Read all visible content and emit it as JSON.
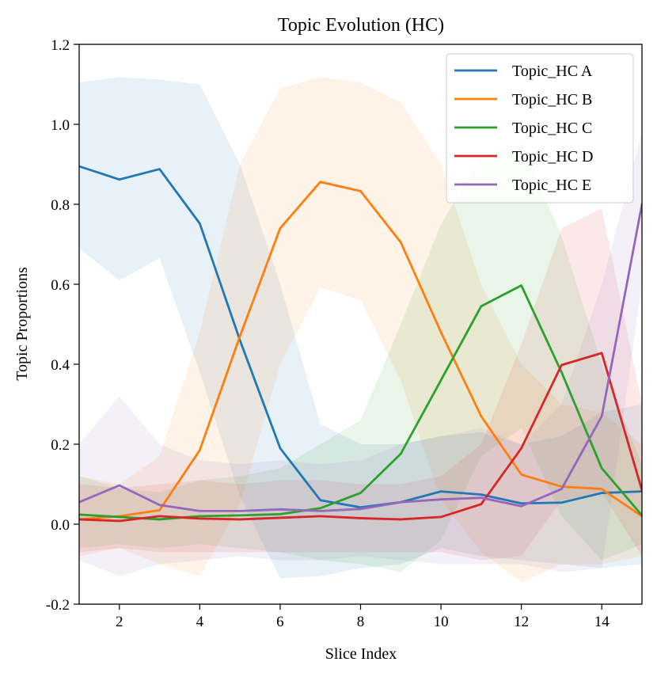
{
  "chart_data": {
    "type": "line",
    "title": "Topic Evolution (HC)",
    "xlabel": "Slice Index",
    "ylabel": "Topic Proportions",
    "xlim": [
      1,
      15
    ],
    "ylim": [
      -0.2,
      1.2
    ],
    "xticks": [
      2,
      4,
      6,
      8,
      10,
      12,
      14
    ],
    "xtick_labels": [
      "2",
      "4",
      "6",
      "8",
      "10",
      "12",
      "14"
    ],
    "yticks": [
      -0.2,
      0.0,
      0.2,
      0.4,
      0.6,
      0.8,
      1.0,
      1.2
    ],
    "ytick_labels": [
      "-0.2",
      "0.0",
      "0.2",
      "0.4",
      "0.6",
      "0.8",
      "1.0",
      "1.2"
    ],
    "grid": false,
    "legend_position": "top-right",
    "x": [
      1,
      2,
      3,
      4,
      5,
      6,
      7,
      8,
      9,
      10,
      11,
      12,
      13,
      14,
      15
    ],
    "series": [
      {
        "name": "Topic_HC A",
        "color": "#1f77b4",
        "values": [
          0.895,
          0.862,
          0.888,
          0.752,
          0.46,
          0.19,
          0.06,
          0.042,
          0.055,
          0.082,
          0.074,
          0.052,
          0.054,
          0.078,
          0.082
        ],
        "upper": [
          1.105,
          1.118,
          1.112,
          1.1,
          0.9,
          0.6,
          0.25,
          0.2,
          0.2,
          0.22,
          0.23,
          0.2,
          0.22,
          0.28,
          0.3
        ],
        "lower": [
          0.69,
          0.61,
          0.665,
          0.38,
          0.07,
          -0.135,
          -0.13,
          -0.11,
          -0.1,
          -0.06,
          -0.08,
          -0.09,
          -0.1,
          -0.11,
          -0.1
        ]
      },
      {
        "name": "Topic_HC B",
        "color": "#ff7f0e",
        "values": [
          0.012,
          0.02,
          0.035,
          0.185,
          0.47,
          0.74,
          0.856,
          0.833,
          0.705,
          0.48,
          0.27,
          0.124,
          0.094,
          0.088,
          0.02
        ],
        "upper": [
          0.12,
          0.1,
          0.17,
          0.48,
          0.9,
          1.09,
          1.118,
          1.105,
          1.055,
          0.9,
          0.6,
          0.4,
          0.3,
          0.28,
          0.2
        ],
        "lower": [
          -0.08,
          -0.06,
          -0.1,
          -0.13,
          0.05,
          0.4,
          0.592,
          0.56,
          0.36,
          0.06,
          -0.07,
          -0.145,
          -0.1,
          -0.1,
          -0.08
        ]
      },
      {
        "name": "Topic_HC C",
        "color": "#2ca02c",
        "values": [
          0.024,
          0.018,
          0.012,
          0.02,
          0.022,
          0.025,
          0.04,
          0.078,
          0.176,
          0.36,
          0.545,
          0.597,
          0.38,
          0.14,
          0.022
        ],
        "upper": [
          0.12,
          0.09,
          0.08,
          0.11,
          0.12,
          0.14,
          0.2,
          0.26,
          0.5,
          0.75,
          0.92,
          0.95,
          0.72,
          0.4,
          0.15
        ],
        "lower": [
          -0.06,
          -0.05,
          -0.06,
          -0.05,
          -0.06,
          -0.07,
          -0.09,
          -0.1,
          -0.12,
          -0.04,
          0.17,
          0.24,
          0.02,
          -0.09,
          -0.05
        ]
      },
      {
        "name": "Topic_HC D",
        "color": "#d62728",
        "values": [
          0.012,
          0.008,
          0.02,
          0.014,
          0.012,
          0.016,
          0.02,
          0.015,
          0.012,
          0.018,
          0.05,
          0.19,
          0.398,
          0.428,
          0.085
        ],
        "upper": [
          0.1,
          0.09,
          0.1,
          0.11,
          0.1,
          0.11,
          0.11,
          0.1,
          0.1,
          0.12,
          0.2,
          0.45,
          0.74,
          0.79,
          0.3
        ],
        "lower": [
          -0.07,
          -0.06,
          -0.07,
          -0.07,
          -0.07,
          -0.07,
          -0.07,
          -0.07,
          -0.07,
          -0.07,
          -0.09,
          -0.08,
          0.06,
          0.08,
          -0.08
        ]
      },
      {
        "name": "Topic_HC E",
        "color": "#9467bd",
        "values": [
          0.055,
          0.097,
          0.048,
          0.033,
          0.033,
          0.037,
          0.033,
          0.038,
          0.055,
          0.062,
          0.066,
          0.045,
          0.088,
          0.27,
          0.8
        ],
        "upper": [
          0.2,
          0.32,
          0.2,
          0.16,
          0.15,
          0.16,
          0.15,
          0.16,
          0.2,
          0.22,
          0.24,
          0.2,
          0.3,
          0.6,
          0.98
        ],
        "lower": [
          -0.09,
          -0.13,
          -0.1,
          -0.09,
          -0.08,
          -0.09,
          -0.09,
          -0.08,
          -0.09,
          -0.1,
          -0.1,
          -0.1,
          -0.12,
          -0.11,
          0.6
        ]
      }
    ]
  }
}
